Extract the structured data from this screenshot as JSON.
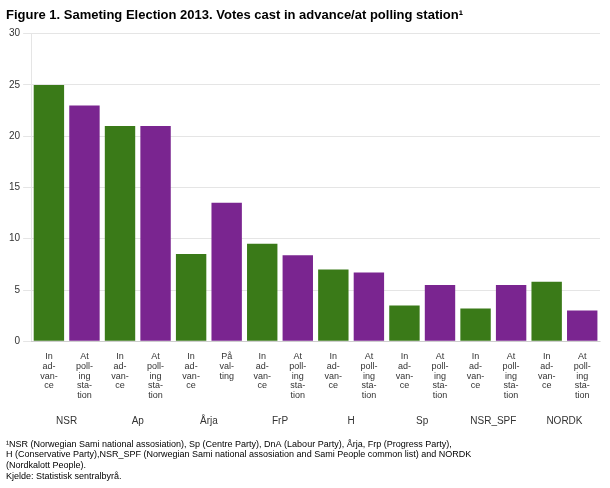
{
  "chart_data": {
    "type": "bar",
    "title": "Figure 1. Sameting Election 2013. Votes cast in advance/at polling station¹",
    "annotations": [
      "¹NSR (Norwegian Sami national assosiation), Sp (Centre Party), DnA (Labour Party), Årja, Frp (Progress Party),",
      "H (Conservative Party),NSR_SPF (Norwegian Sami national assosiation and Sami People common list) and NORDK",
      "(Nordkalott People).",
      "Kjelde: Statistisk sentralbyrå."
    ],
    "categories": [
      "NSR",
      "Ap",
      "Årja",
      "FrP",
      "H",
      "Sp",
      "NSR_SPF",
      "NORDK"
    ],
    "series": [
      {
        "color": "#3a7a18",
        "values": [
          25.0,
          21.0,
          8.5,
          9.5,
          7.0,
          3.5,
          3.2,
          5.8
        ],
        "labels": [
          "In\nad-\nvan-\nce",
          "In\nad-\nvan-\nce",
          "In\nad-\nvan-\nce",
          "In\nad-\nvan-\nce",
          "In\nad-\nvan-\nce",
          "In\nad-\nvan-\nce",
          "In\nad-\nvan-\nce",
          "In\nad-\nvan-\nce"
        ]
      },
      {
        "color": "#7a2590",
        "values": [
          23.0,
          21.0,
          13.5,
          8.4,
          6.7,
          5.5,
          5.5,
          3.0
        ],
        "labels": [
          "At\npoll-\ning\nsta-\ntion",
          "At\npoll-\ning\nsta-\ntion",
          "På\nval-\nting",
          "At\npoll-\ning\nsta-\ntion",
          "At\npoll-\ning\nsta-\ntion",
          "At\npoll-\ning\nsta-\ntion",
          "At\npoll-\ning\nsta-\ntion",
          "At\npoll-\ning\nsta-\ntion"
        ]
      }
    ],
    "ylim": [
      0,
      30
    ],
    "yticks": [
      0,
      5,
      10,
      15,
      20,
      25,
      30
    ],
    "grid": true
  }
}
